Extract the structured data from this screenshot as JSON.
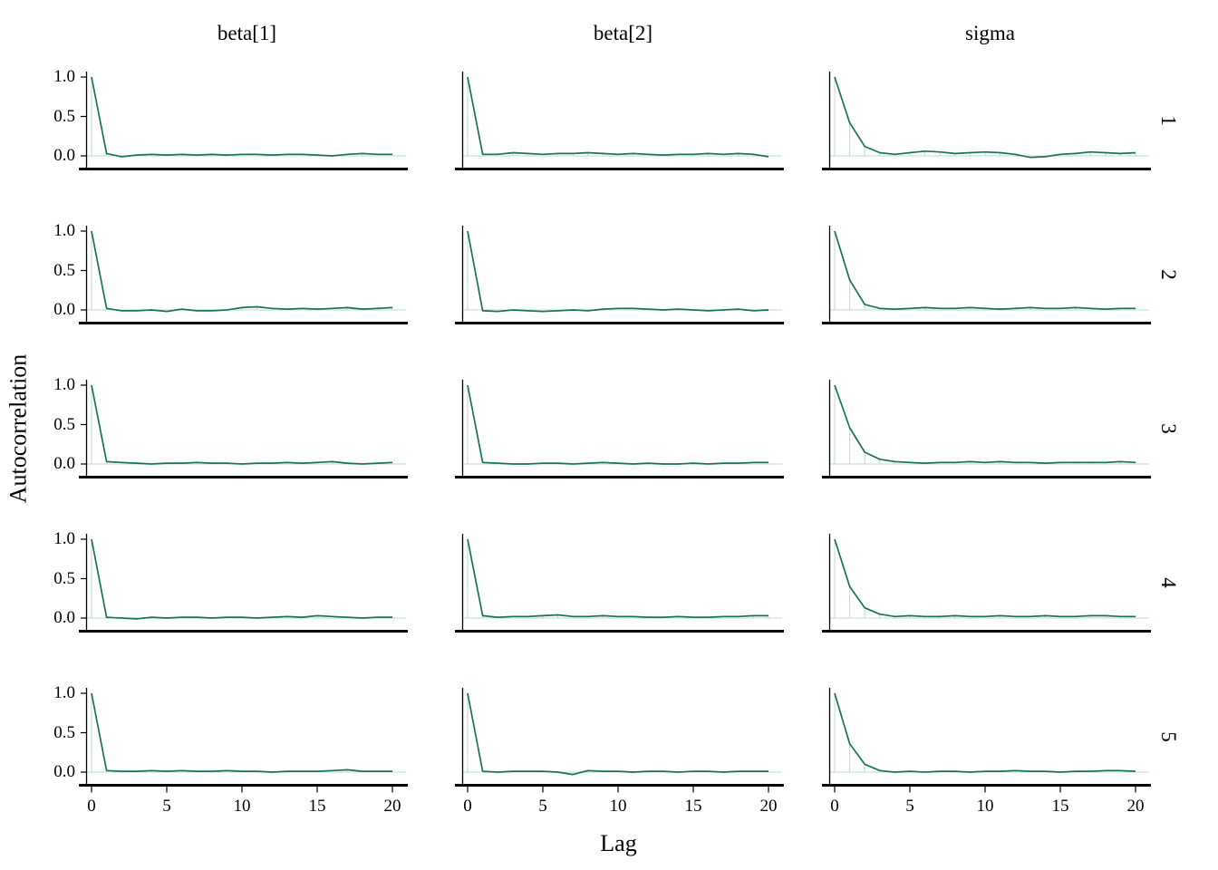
{
  "figure": {
    "col_labels": [
      "beta[1]",
      "beta[2]",
      "sigma"
    ],
    "row_labels": [
      "1",
      "2",
      "3",
      "4",
      "5"
    ],
    "y_axis_label": "Autocorrelation",
    "x_axis_label": "Lag",
    "y_tick_labels": [
      "1.0",
      "0.5",
      "0.0"
    ],
    "x_tick_labels": [
      "0",
      "5",
      "10",
      "15",
      "20"
    ]
  },
  "colors": {
    "line": "#17735E",
    "light": "#BFD9D3",
    "axis": "#000000",
    "text": "#000000"
  },
  "chart_data": {
    "type": "line",
    "title": "",
    "xlabel": "Lag",
    "ylabel": "Autocorrelation",
    "x": [
      0,
      1,
      2,
      3,
      4,
      5,
      6,
      7,
      8,
      9,
      10,
      11,
      12,
      13,
      14,
      15,
      16,
      17,
      18,
      19,
      20
    ],
    "xlim": [
      0,
      20
    ],
    "ylim": [
      -0.07,
      1.05
    ],
    "x_ticks": [
      0,
      5,
      10,
      15,
      20
    ],
    "y_ticks": [
      0.0,
      0.5,
      1.0
    ],
    "grid": false,
    "legend": "none",
    "facet_columns": [
      "beta[1]",
      "beta[2]",
      "sigma"
    ],
    "facet_rows": [
      "1",
      "2",
      "3",
      "4",
      "5"
    ],
    "series": [
      {
        "parameter": "beta[1]",
        "chain": "1",
        "values": [
          1,
          0.03,
          -0.01,
          0.01,
          0.02,
          0.01,
          0.02,
          0.01,
          0.02,
          0.01,
          0.02,
          0.02,
          0.01,
          0.02,
          0.02,
          0.01,
          0.0,
          0.02,
          0.03,
          0.02,
          0.02
        ]
      },
      {
        "parameter": "beta[2]",
        "chain": "1",
        "values": [
          1,
          0.02,
          0.02,
          0.04,
          0.03,
          0.02,
          0.03,
          0.03,
          0.04,
          0.03,
          0.02,
          0.03,
          0.02,
          0.01,
          0.02,
          0.02,
          0.03,
          0.02,
          0.03,
          0.02,
          -0.01
        ]
      },
      {
        "parameter": "sigma",
        "chain": "1",
        "values": [
          1,
          0.42,
          0.12,
          0.04,
          0.02,
          0.04,
          0.06,
          0.05,
          0.03,
          0.04,
          0.05,
          0.04,
          0.02,
          -0.02,
          -0.01,
          0.02,
          0.03,
          0.05,
          0.04,
          0.03,
          0.04
        ]
      },
      {
        "parameter": "beta[1]",
        "chain": "2",
        "values": [
          1,
          0.02,
          -0.01,
          -0.01,
          0.0,
          -0.02,
          0.01,
          -0.01,
          -0.01,
          0.0,
          0.03,
          0.04,
          0.02,
          0.01,
          0.02,
          0.01,
          0.02,
          0.03,
          0.01,
          0.02,
          0.03
        ]
      },
      {
        "parameter": "beta[2]",
        "chain": "2",
        "values": [
          1,
          -0.01,
          -0.02,
          0.0,
          -0.01,
          -0.02,
          -0.01,
          0.0,
          -0.01,
          0.01,
          0.02,
          0.02,
          0.01,
          0.0,
          0.01,
          0.0,
          -0.01,
          0.0,
          0.01,
          -0.01,
          0.0
        ]
      },
      {
        "parameter": "sigma",
        "chain": "2",
        "values": [
          1,
          0.38,
          0.07,
          0.02,
          0.01,
          0.02,
          0.03,
          0.02,
          0.02,
          0.03,
          0.02,
          0.01,
          0.02,
          0.03,
          0.02,
          0.02,
          0.03,
          0.02,
          0.01,
          0.02,
          0.02
        ]
      },
      {
        "parameter": "beta[1]",
        "chain": "3",
        "values": [
          1,
          0.03,
          0.02,
          0.01,
          0.0,
          0.01,
          0.01,
          0.02,
          0.01,
          0.01,
          0.0,
          0.01,
          0.01,
          0.02,
          0.01,
          0.02,
          0.03,
          0.01,
          0.0,
          0.01,
          0.02
        ]
      },
      {
        "parameter": "beta[2]",
        "chain": "3",
        "values": [
          1,
          0.02,
          0.01,
          0.0,
          0.0,
          0.01,
          0.01,
          0.0,
          0.01,
          0.02,
          0.01,
          0.0,
          0.01,
          0.0,
          0.0,
          0.01,
          0.0,
          0.01,
          0.01,
          0.02,
          0.02
        ]
      },
      {
        "parameter": "sigma",
        "chain": "3",
        "values": [
          1,
          0.46,
          0.15,
          0.06,
          0.03,
          0.02,
          0.01,
          0.02,
          0.02,
          0.03,
          0.02,
          0.03,
          0.02,
          0.02,
          0.01,
          0.02,
          0.02,
          0.02,
          0.02,
          0.03,
          0.02
        ]
      },
      {
        "parameter": "beta[1]",
        "chain": "4",
        "values": [
          1,
          0.01,
          0.0,
          -0.01,
          0.01,
          0.0,
          0.01,
          0.01,
          0.0,
          0.01,
          0.01,
          0.0,
          0.01,
          0.02,
          0.01,
          0.03,
          0.02,
          0.01,
          0.0,
          0.01,
          0.01
        ]
      },
      {
        "parameter": "beta[2]",
        "chain": "4",
        "values": [
          1,
          0.03,
          0.01,
          0.02,
          0.02,
          0.03,
          0.04,
          0.02,
          0.02,
          0.03,
          0.02,
          0.02,
          0.01,
          0.01,
          0.02,
          0.01,
          0.01,
          0.02,
          0.02,
          0.03,
          0.03
        ]
      },
      {
        "parameter": "sigma",
        "chain": "4",
        "values": [
          1,
          0.4,
          0.13,
          0.05,
          0.02,
          0.03,
          0.02,
          0.02,
          0.03,
          0.02,
          0.02,
          0.03,
          0.02,
          0.02,
          0.03,
          0.02,
          0.02,
          0.03,
          0.03,
          0.02,
          0.02
        ]
      },
      {
        "parameter": "beta[1]",
        "chain": "5",
        "values": [
          1,
          0.02,
          0.01,
          0.01,
          0.02,
          0.01,
          0.02,
          0.01,
          0.01,
          0.02,
          0.01,
          0.01,
          0.0,
          0.01,
          0.01,
          0.01,
          0.02,
          0.03,
          0.01,
          0.01,
          0.01
        ]
      },
      {
        "parameter": "beta[2]",
        "chain": "5",
        "values": [
          1,
          0.01,
          0.0,
          0.01,
          0.01,
          0.01,
          0.0,
          -0.03,
          0.02,
          0.01,
          0.01,
          0.0,
          0.01,
          0.01,
          0.0,
          0.01,
          0.01,
          0.0,
          0.01,
          0.01,
          0.01
        ]
      },
      {
        "parameter": "sigma",
        "chain": "5",
        "values": [
          1,
          0.36,
          0.1,
          0.02,
          0.0,
          0.01,
          0.0,
          0.01,
          0.01,
          0.0,
          0.01,
          0.01,
          0.02,
          0.01,
          0.01,
          0.0,
          0.01,
          0.01,
          0.02,
          0.02,
          0.01
        ]
      }
    ]
  }
}
